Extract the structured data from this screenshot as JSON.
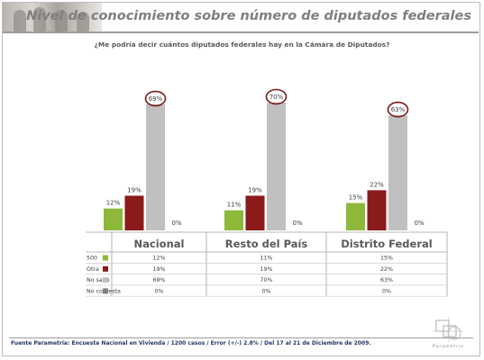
{
  "header": {
    "title": "Nivel de conocimiento sobre  número de  diputados federales"
  },
  "question": "¿Me podría decir cuántos diputados federales hay en la Cámara de Diputados?",
  "footer": {
    "source": "Fuente Parametría: Encuesta Nacional en Vivienda / 1200 casos / Error (+/-) 2.8% / Del 17 al 21 de Diciembre de 2009.",
    "logo_text": "Parametría"
  },
  "colors": {
    "500": "#8db83a",
    "Otra": "#8b1a1a",
    "No sabe": "#c0c0c0",
    "No contesta": "#7f7f7f",
    "highlight_circle": "#7b1a1a"
  },
  "chart_data": {
    "type": "bar",
    "categories": [
      "Nacional",
      "Resto del País",
      "Distrito Federal"
    ],
    "series": [
      {
        "name": "500",
        "values": [
          12,
          11,
          15
        ]
      },
      {
        "name": "Otra",
        "values": [
          19,
          19,
          22
        ]
      },
      {
        "name": "No sabe",
        "values": [
          69,
          70,
          63
        ]
      },
      {
        "name": "No contesta",
        "values": [
          0,
          0,
          0
        ]
      }
    ],
    "data_labels": [
      [
        "12%",
        "19%",
        "69%",
        "0%"
      ],
      [
        "11%",
        "19%",
        "70%",
        "0%"
      ],
      [
        "15%",
        "22%",
        "63%",
        "0%"
      ]
    ],
    "highlighted_series": "No sabe",
    "ylim": [
      0,
      100
    ],
    "legend": "data table below chart",
    "grid": false
  }
}
